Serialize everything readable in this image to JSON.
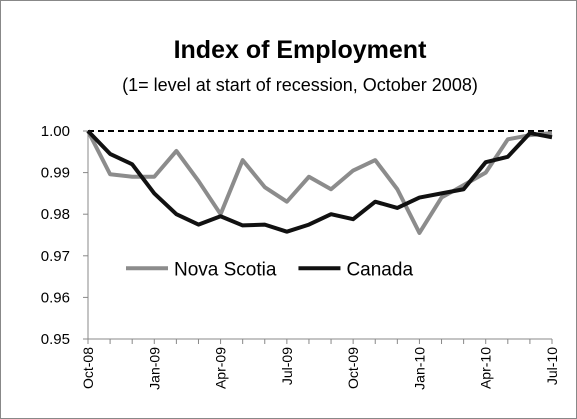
{
  "chart_data": {
    "type": "line",
    "title": "Index of Employment",
    "subtitle": "(1= level at start of recession, October 2008)",
    "categories": [
      "Oct-08",
      null,
      null,
      "Jan-09",
      null,
      null,
      "Apr-09",
      null,
      null,
      "Jul-09",
      null,
      null,
      "Oct-09",
      null,
      null,
      "Jan-10",
      null,
      null,
      "Apr-10",
      null,
      null,
      "Jul-10"
    ],
    "series": [
      {
        "name": "Nova Scotia",
        "color": "#8c8c8c",
        "values": [
          1.0,
          0.9896,
          0.989,
          0.989,
          0.9952,
          0.988,
          0.98,
          0.993,
          0.9865,
          0.983,
          0.989,
          0.986,
          0.9905,
          0.993,
          0.986,
          0.9755,
          0.984,
          0.987,
          0.99,
          0.998,
          0.999,
          0.9995
        ]
      },
      {
        "name": "Canada",
        "color": "#111111",
        "values": [
          1.0,
          0.9945,
          0.992,
          0.985,
          0.98,
          0.9775,
          0.9795,
          0.9773,
          0.9775,
          0.9758,
          0.9775,
          0.98,
          0.9788,
          0.983,
          0.9815,
          0.984,
          0.985,
          0.986,
          0.9925,
          0.9938,
          0.9995,
          0.9985
        ]
      }
    ],
    "reference_line": 1,
    "ylim": [
      0.95,
      1.0
    ],
    "yticks": [
      {
        "value": 1,
        "label": "1.00"
      },
      0.99,
      0.98,
      0.97,
      0.96,
      0.95
    ],
    "legend": "center-left"
  }
}
